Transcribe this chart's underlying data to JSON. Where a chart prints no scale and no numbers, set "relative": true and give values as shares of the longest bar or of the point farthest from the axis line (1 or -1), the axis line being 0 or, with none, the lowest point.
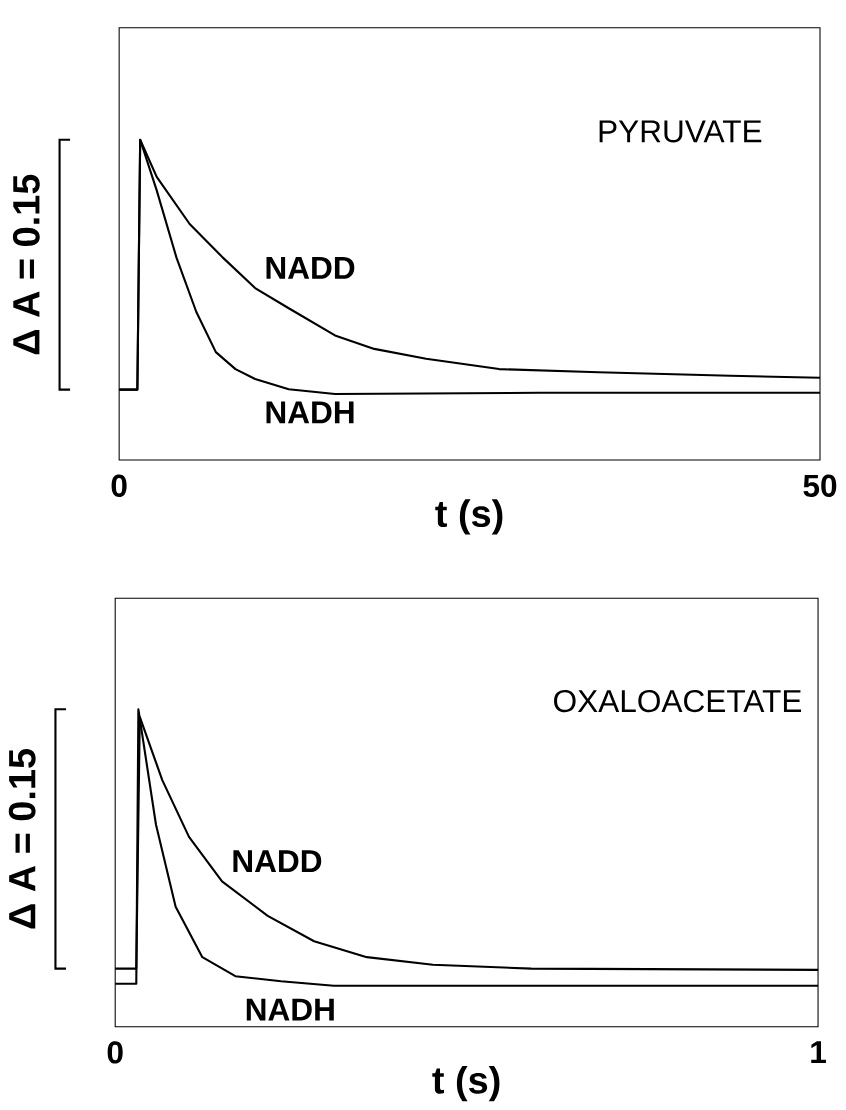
{
  "chart_data": [
    {
      "type": "line",
      "title": "PYRUVATE",
      "xlabel": "t (s)",
      "relative": true,
      "xlim": [
        0,
        50
      ],
      "xticks": [
        0,
        50
      ],
      "marker": "none",
      "line_style": "solid",
      "annotations": [
        "Δ A = 0.15"
      ],
      "series": [
        {
          "name": "NADD",
          "color": "#000000",
          "x": [
            0,
            1.3,
            1.5,
            2.68,
            5.03,
            7.4,
            9.7,
            12.1,
            15.4,
            18.2,
            21.9,
            27.1,
            34.2,
            43.6,
            50
          ],
          "values": [
            0.22,
            0.22,
            1.0,
            0.884,
            0.737,
            0.632,
            0.537,
            0.474,
            0.389,
            0.347,
            0.316,
            0.284,
            0.274,
            0.263,
            0.257
          ]
        },
        {
          "name": "NADH",
          "color": "#000000",
          "x": [
            0,
            1.3,
            1.5,
            2.68,
            4.09,
            5.5,
            6.9,
            8.3,
            9.7,
            12.1,
            15.4,
            30,
            50
          ],
          "values": [
            0.22,
            0.22,
            1.0,
            0.842,
            0.632,
            0.463,
            0.337,
            0.284,
            0.253,
            0.221,
            0.206,
            0.21,
            0.21
          ]
        }
      ]
    },
    {
      "type": "line",
      "title": "OXALOACETATE",
      "xlabel": "t (s)",
      "relative": true,
      "xlim": [
        0,
        1
      ],
      "xticks": [
        0,
        1
      ],
      "marker": "none",
      "line_style": "solid",
      "annotations": [
        "Δ A = 0.15"
      ],
      "series": [
        {
          "name": "NADD",
          "color": "#000000",
          "x": [
            0,
            0.03,
            0.035,
            0.067,
            0.105,
            0.152,
            0.217,
            0.283,
            0.358,
            0.452,
            0.592,
            1.0
          ],
          "values": [
            0.183,
            0.183,
            0.976,
            0.777,
            0.598,
            0.458,
            0.349,
            0.269,
            0.219,
            0.195,
            0.183,
            0.179
          ]
        },
        {
          "name": "NADH",
          "color": "#000000",
          "x": [
            0,
            0.03,
            0.033,
            0.058,
            0.086,
            0.124,
            0.171,
            0.236,
            0.311,
            1.0
          ],
          "values": [
            0.135,
            0.135,
            1.0,
            0.637,
            0.378,
            0.219,
            0.159,
            0.143,
            0.129,
            0.129
          ]
        }
      ]
    }
  ]
}
